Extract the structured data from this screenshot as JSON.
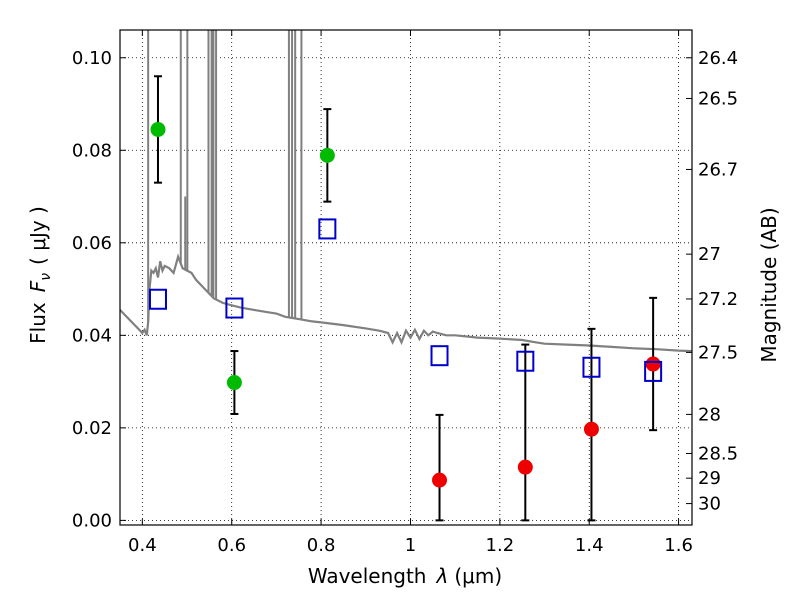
{
  "chart_data": {
    "type": "scatter",
    "xlabel_prefix": "Wavelength",
    "xlabel_sym": "λ",
    "xlabel_unit": "(μm)",
    "ylabel_prefix": "Flux",
    "ylabel_sym": "F",
    "ylabel_sub": "ν",
    "ylabel_unit": "( μJy )",
    "y2label": "Magnitude (AB)",
    "xlim": [
      0.35,
      1.63
    ],
    "ylim": [
      -0.001,
      0.106
    ],
    "xticks": [
      {
        "v": 0.4,
        "label": "0.4"
      },
      {
        "v": 0.6,
        "label": "0.6"
      },
      {
        "v": 0.8,
        "label": "0.8"
      },
      {
        "v": 1.0,
        "label": "1"
      },
      {
        "v": 1.2,
        "label": "1.2"
      },
      {
        "v": 1.4,
        "label": "1.4"
      },
      {
        "v": 1.6,
        "label": "1.6"
      }
    ],
    "yticks": [
      {
        "v": 0.0,
        "label": "0.00"
      },
      {
        "v": 0.02,
        "label": "0.02"
      },
      {
        "v": 0.04,
        "label": "0.04"
      },
      {
        "v": 0.06,
        "label": "0.06"
      },
      {
        "v": 0.08,
        "label": "0.08"
      },
      {
        "v": 0.1,
        "label": "0.10"
      }
    ],
    "magnitude_ticks": [
      "26.4",
      "26.5",
      "26.7",
      "27",
      "27.2",
      "27.5",
      "28",
      "28.5",
      "29",
      "30"
    ],
    "grid": true,
    "colors": {
      "green": "#00bb00",
      "red": "#ee0000",
      "blue": "#0000cc",
      "model": "#808080"
    },
    "series": [
      {
        "marker": "circle",
        "color": "green",
        "points": [
          {
            "x": 0.435,
            "y": 0.0845,
            "err_lo": 0.0115,
            "err_hi": 0.0115
          },
          {
            "x": 0.606,
            "y": 0.0298,
            "err_lo": 0.0068,
            "err_hi": 0.0068
          },
          {
            "x": 0.814,
            "y": 0.0789,
            "err_lo": 0.01,
            "err_hi": 0.01
          }
        ]
      },
      {
        "marker": "circle",
        "color": "red",
        "points": [
          {
            "x": 1.065,
            "y": 0.0087,
            "err_lo": 0.0087,
            "err_hi": 0.0141
          },
          {
            "x": 1.257,
            "y": 0.0115,
            "err_lo": 0.0115,
            "err_hi": 0.0265
          },
          {
            "x": 1.405,
            "y": 0.0197,
            "err_lo": 0.0197,
            "err_hi": 0.0217
          },
          {
            "x": 1.543,
            "y": 0.0338,
            "err_lo": 0.0143,
            "err_hi": 0.0143
          }
        ]
      },
      {
        "marker": "open-square",
        "color": "blue",
        "points": [
          {
            "x": 0.435,
            "y": 0.0478
          },
          {
            "x": 0.606,
            "y": 0.0459
          },
          {
            "x": 0.814,
            "y": 0.063
          },
          {
            "x": 1.065,
            "y": 0.0356
          },
          {
            "x": 1.257,
            "y": 0.0344
          },
          {
            "x": 1.405,
            "y": 0.0331
          },
          {
            "x": 1.543,
            "y": 0.0322
          }
        ]
      }
    ],
    "model_spectrum": {
      "color": "model",
      "points": [
        [
          0.35,
          0.0455
        ],
        [
          0.37,
          0.0435
        ],
        [
          0.39,
          0.0415
        ],
        [
          0.4,
          0.0405
        ],
        [
          0.405,
          0.0412
        ],
        [
          0.41,
          0.04
        ],
        [
          0.413,
          0.043
        ],
        [
          0.416,
          0.05
        ],
        [
          0.42,
          0.054
        ],
        [
          0.425,
          0.0535
        ],
        [
          0.43,
          0.0545
        ],
        [
          0.435,
          0.0525
        ],
        [
          0.44,
          0.056
        ],
        [
          0.445,
          0.054
        ],
        [
          0.45,
          0.055
        ],
        [
          0.46,
          0.0545
        ],
        [
          0.47,
          0.0535
        ],
        [
          0.48,
          0.057
        ],
        [
          0.49,
          0.0545
        ],
        [
          0.5,
          0.054
        ],
        [
          0.51,
          0.0535
        ],
        [
          0.52,
          0.052
        ],
        [
          0.53,
          0.051
        ],
        [
          0.54,
          0.05
        ],
        [
          0.55,
          0.049
        ],
        [
          0.56,
          0.048
        ],
        [
          0.58,
          0.047
        ],
        [
          0.6,
          0.0465
        ],
        [
          0.62,
          0.046
        ],
        [
          0.65,
          0.0455
        ],
        [
          0.68,
          0.045
        ],
        [
          0.7,
          0.0447
        ],
        [
          0.72,
          0.044
        ],
        [
          0.75,
          0.0435
        ],
        [
          0.78,
          0.043
        ],
        [
          0.8,
          0.0428
        ],
        [
          0.85,
          0.0422
        ],
        [
          0.9,
          0.0415
        ],
        [
          0.93,
          0.041
        ],
        [
          0.95,
          0.0405
        ],
        [
          0.96,
          0.0385
        ],
        [
          0.97,
          0.0405
        ],
        [
          0.98,
          0.0385
        ],
        [
          0.99,
          0.041
        ],
        [
          1.0,
          0.0395
        ],
        [
          1.01,
          0.0412
        ],
        [
          1.02,
          0.0392
        ],
        [
          1.03,
          0.041
        ],
        [
          1.04,
          0.04
        ],
        [
          1.05,
          0.0408
        ],
        [
          1.06,
          0.0405
        ],
        [
          1.08,
          0.04
        ],
        [
          1.1,
          0.04
        ],
        [
          1.15,
          0.0395
        ],
        [
          1.2,
          0.0393
        ],
        [
          1.25,
          0.039
        ],
        [
          1.28,
          0.0385
        ],
        [
          1.3,
          0.0382
        ],
        [
          1.35,
          0.038
        ],
        [
          1.4,
          0.0378
        ],
        [
          1.45,
          0.0375
        ],
        [
          1.5,
          0.0372
        ],
        [
          1.55,
          0.037
        ],
        [
          1.6,
          0.0367
        ],
        [
          1.63,
          0.0366
        ]
      ],
      "emission_lines": [
        {
          "x": 0.413,
          "top": 0.106
        },
        {
          "x": 0.486,
          "top": 0.106
        },
        {
          "x": 0.496,
          "top": 0.07
        },
        {
          "x": 0.5007,
          "top": 0.106
        },
        {
          "x": 0.548,
          "top": 0.106
        },
        {
          "x": 0.555,
          "top": 0.106
        },
        {
          "x": 0.559,
          "top": 0.106
        },
        {
          "x": 0.565,
          "top": 0.106
        },
        {
          "x": 0.728,
          "top": 0.106
        },
        {
          "x": 0.735,
          "top": 0.106
        },
        {
          "x": 0.742,
          "top": 0.106
        },
        {
          "x": 0.756,
          "top": 0.106
        }
      ]
    }
  }
}
